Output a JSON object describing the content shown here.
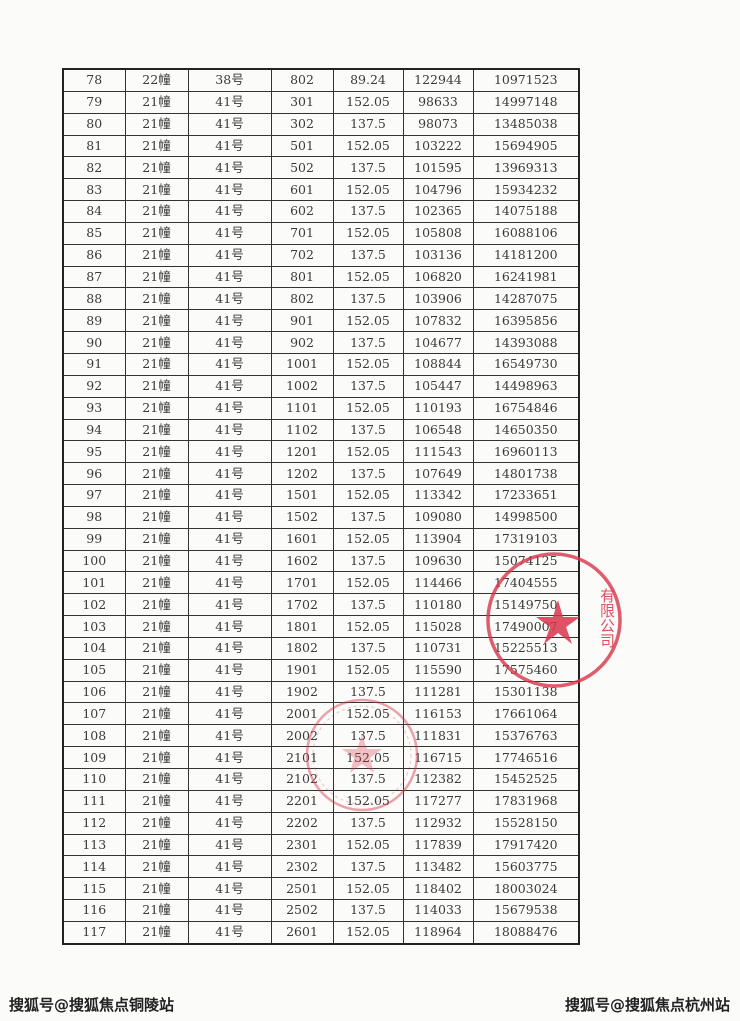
{
  "table": {
    "rows": [
      [
        "78",
        "22幢",
        "38号",
        "802",
        "89.24",
        "122944",
        "10971523"
      ],
      [
        "79",
        "21幢",
        "41号",
        "301",
        "152.05",
        "98633",
        "14997148"
      ],
      [
        "80",
        "21幢",
        "41号",
        "302",
        "137.5",
        "98073",
        "13485038"
      ],
      [
        "81",
        "21幢",
        "41号",
        "501",
        "152.05",
        "103222",
        "15694905"
      ],
      [
        "82",
        "21幢",
        "41号",
        "502",
        "137.5",
        "101595",
        "13969313"
      ],
      [
        "83",
        "21幢",
        "41号",
        "601",
        "152.05",
        "104796",
        "15934232"
      ],
      [
        "84",
        "21幢",
        "41号",
        "602",
        "137.5",
        "102365",
        "14075188"
      ],
      [
        "85",
        "21幢",
        "41号",
        "701",
        "152.05",
        "105808",
        "16088106"
      ],
      [
        "86",
        "21幢",
        "41号",
        "702",
        "137.5",
        "103136",
        "14181200"
      ],
      [
        "87",
        "21幢",
        "41号",
        "801",
        "152.05",
        "106820",
        "16241981"
      ],
      [
        "88",
        "21幢",
        "41号",
        "802",
        "137.5",
        "103906",
        "14287075"
      ],
      [
        "89",
        "21幢",
        "41号",
        "901",
        "152.05",
        "107832",
        "16395856"
      ],
      [
        "90",
        "21幢",
        "41号",
        "902",
        "137.5",
        "104677",
        "14393088"
      ],
      [
        "91",
        "21幢",
        "41号",
        "1001",
        "152.05",
        "108844",
        "16549730"
      ],
      [
        "92",
        "21幢",
        "41号",
        "1002",
        "137.5",
        "105447",
        "14498963"
      ],
      [
        "93",
        "21幢",
        "41号",
        "1101",
        "152.05",
        "110193",
        "16754846"
      ],
      [
        "94",
        "21幢",
        "41号",
        "1102",
        "137.5",
        "106548",
        "14650350"
      ],
      [
        "95",
        "21幢",
        "41号",
        "1201",
        "152.05",
        "111543",
        "16960113"
      ],
      [
        "96",
        "21幢",
        "41号",
        "1202",
        "137.5",
        "107649",
        "14801738"
      ],
      [
        "97",
        "21幢",
        "41号",
        "1501",
        "152.05",
        "113342",
        "17233651"
      ],
      [
        "98",
        "21幢",
        "41号",
        "1502",
        "137.5",
        "109080",
        "14998500"
      ],
      [
        "99",
        "21幢",
        "41号",
        "1601",
        "152.05",
        "113904",
        "17319103"
      ],
      [
        "100",
        "21幢",
        "41号",
        "1602",
        "137.5",
        "109630",
        "15074125"
      ],
      [
        "101",
        "21幢",
        "41号",
        "1701",
        "152.05",
        "114466",
        "17404555"
      ],
      [
        "102",
        "21幢",
        "41号",
        "1702",
        "137.5",
        "110180",
        "15149750"
      ],
      [
        "103",
        "21幢",
        "41号",
        "1801",
        "152.05",
        "115028",
        "17490007"
      ],
      [
        "104",
        "21幢",
        "41号",
        "1802",
        "137.5",
        "110731",
        "15225513"
      ],
      [
        "105",
        "21幢",
        "41号",
        "1901",
        "152.05",
        "115590",
        "17575460"
      ],
      [
        "106",
        "21幢",
        "41号",
        "1902",
        "137.5",
        "111281",
        "15301138"
      ],
      [
        "107",
        "21幢",
        "41号",
        "2001",
        "152.05",
        "116153",
        "17661064"
      ],
      [
        "108",
        "21幢",
        "41号",
        "2002",
        "137.5",
        "111831",
        "15376763"
      ],
      [
        "109",
        "21幢",
        "41号",
        "2101",
        "152.05",
        "116715",
        "17746516"
      ],
      [
        "110",
        "21幢",
        "41号",
        "2102",
        "137.5",
        "112382",
        "15452525"
      ],
      [
        "111",
        "21幢",
        "41号",
        "2201",
        "152.05",
        "117277",
        "17831968"
      ],
      [
        "112",
        "21幢",
        "41号",
        "2202",
        "137.5",
        "112932",
        "15528150"
      ],
      [
        "113",
        "21幢",
        "41号",
        "2301",
        "152.05",
        "117839",
        "17917420"
      ],
      [
        "114",
        "21幢",
        "41号",
        "2302",
        "137.5",
        "113482",
        "15603775"
      ],
      [
        "115",
        "21幢",
        "41号",
        "2501",
        "152.05",
        "118402",
        "18003024"
      ],
      [
        "116",
        "21幢",
        "41号",
        "2502",
        "137.5",
        "114033",
        "15679538"
      ],
      [
        "117",
        "21幢",
        "41号",
        "2601",
        "152.05",
        "118964",
        "18088476"
      ]
    ]
  },
  "stamps": {
    "color": "#d8344a",
    "company_stamp_text": "有限公司",
    "icon": "star-icon"
  },
  "watermarks": {
    "left": "搜狐号@搜狐焦点铜陵站",
    "right": "搜狐号@搜狐焦点杭州站"
  }
}
